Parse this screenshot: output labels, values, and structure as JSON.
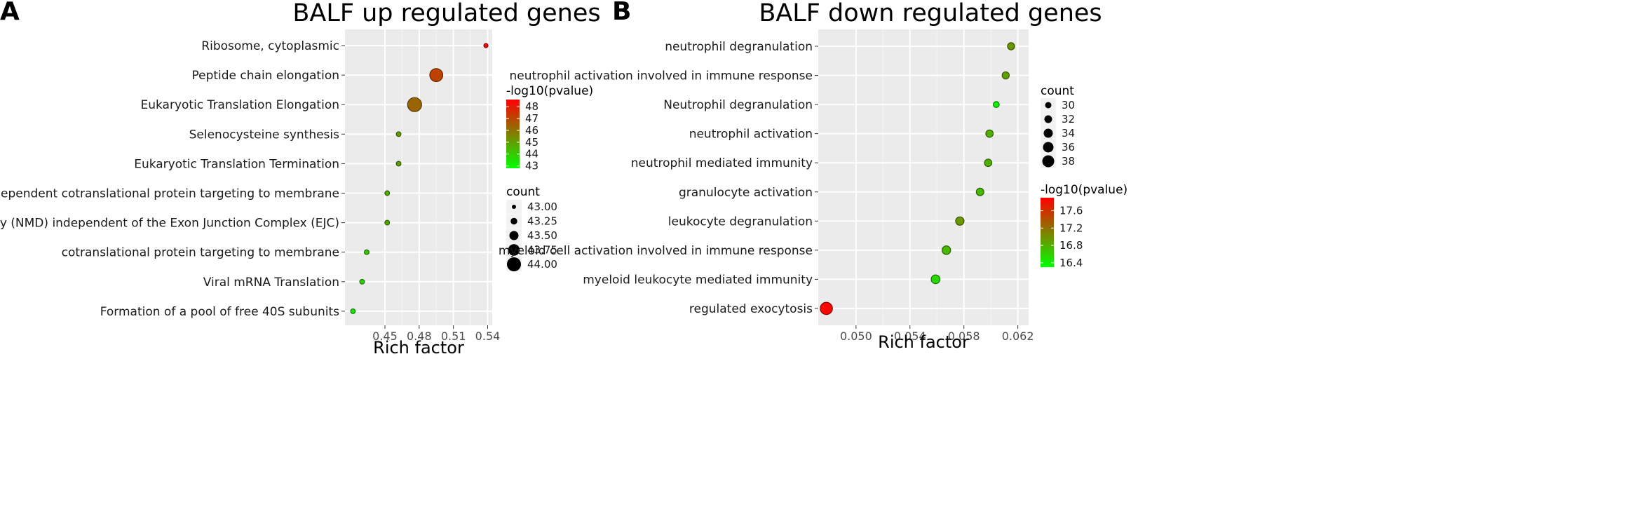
{
  "chart_data": [
    {
      "panel": "A",
      "type": "scatter",
      "title": "BALF up regulated genes",
      "xlabel": "Rich factor",
      "ylabel": "",
      "xlim": [
        0.415,
        0.544
      ],
      "xticks": [
        0.45,
        0.48,
        0.51,
        0.54
      ],
      "xtick_labels": [
        "0.45",
        "0.48",
        "0.51",
        "0.54"
      ],
      "categories": [
        "Ribosome, cytoplasmic",
        "Peptide chain elongation",
        "Eukaryotic Translation Elongation",
        "Selenocysteine synthesis",
        "Eukaryotic Translation Termination",
        "SRP-dependent cotranslational protein targeting to membrane",
        "Nonsense Mediated Decay (NMD) independent of the Exon Junction Complex (EJC)",
        "cotranslational protein targeting to membrane",
        "Viral mRNA Translation",
        "Formation of a pool of free 40S subunits"
      ],
      "points": [
        {
          "term": "Ribosome, cytoplasmic",
          "rich_factor": 0.5385,
          "neglog10p": 48.4,
          "count": 43.0
        },
        {
          "term": "Peptide chain elongation",
          "rich_factor": 0.495,
          "neglog10p": 47.1,
          "count": 43.9
        },
        {
          "term": "Eukaryotic Translation Elongation",
          "rich_factor": 0.476,
          "neglog10p": 46.3,
          "count": 44.0
        },
        {
          "term": "Selenocysteine synthesis",
          "rich_factor": 0.462,
          "neglog10p": 45.0,
          "count": 43.05
        },
        {
          "term": "Eukaryotic Translation Termination",
          "rich_factor": 0.462,
          "neglog10p": 45.0,
          "count": 43.05
        },
        {
          "term": "SRP-dependent cotranslational protein targeting to membrane",
          "rich_factor": 0.452,
          "neglog10p": 44.7,
          "count": 43.05
        },
        {
          "term": "Nonsense Mediated Decay (NMD) independent of the Exon Junction Complex (EJC)",
          "rich_factor": 0.452,
          "neglog10p": 44.7,
          "count": 43.05
        },
        {
          "term": "cotranslational protein targeting to membrane",
          "rich_factor": 0.434,
          "neglog10p": 44.0,
          "count": 43.05
        },
        {
          "term": "Viral mRNA Translation",
          "rich_factor": 0.43,
          "neglog10p": 43.8,
          "count": 43.05
        },
        {
          "term": "Formation of a pool of free 40S subunits",
          "rich_factor": 0.422,
          "neglog10p": 43.4,
          "count": 43.05
        }
      ],
      "color_legend": {
        "title": "-log10(pvalue)",
        "min": 42.8,
        "max": 48.6,
        "ticks": [
          43,
          44,
          45,
          46,
          47,
          48
        ]
      },
      "size_legend": {
        "title": "count",
        "min": 43.0,
        "max": 44.0,
        "values": [
          43.0,
          43.25,
          43.5,
          43.75,
          44.0
        ],
        "labels": [
          "43.00",
          "43.25",
          "43.50",
          "43.75",
          "44.00"
        ]
      },
      "legend_order": [
        "color",
        "size"
      ]
    },
    {
      "panel": "B",
      "type": "scatter",
      "title": "BALF down regulated genes",
      "xlabel": "Rich factor",
      "ylabel": "",
      "xlim": [
        0.0472,
        0.0628
      ],
      "xticks": [
        0.05,
        0.054,
        0.058,
        0.062
      ],
      "xtick_labels": [
        "0.050",
        "0.054",
        "0.058",
        "0.062"
      ],
      "categories": [
        "neutrophil degranulation",
        "neutrophil activation involved in immune response",
        "Neutrophil degranulation",
        "neutrophil activation",
        "neutrophil mediated immunity",
        "granulocyte activation",
        "leukocyte degranulation",
        "myeloid cell activation involved in immune response",
        "myeloid leukocyte mediated immunity",
        "regulated exocytosis"
      ],
      "points": [
        {
          "term": "neutrophil degranulation",
          "rich_factor": 0.0615,
          "neglog10p": 16.95,
          "count": 31.2
        },
        {
          "term": "neutrophil activation involved in immune response",
          "rich_factor": 0.0611,
          "neglog10p": 16.9,
          "count": 31.2
        },
        {
          "term": "Neutrophil degranulation",
          "rich_factor": 0.0604,
          "neglog10p": 16.4,
          "count": 29.5
        },
        {
          "term": "neutrophil activation",
          "rich_factor": 0.0599,
          "neglog10p": 16.8,
          "count": 31.5
        },
        {
          "term": "neutrophil mediated immunity",
          "rich_factor": 0.0598,
          "neglog10p": 16.8,
          "count": 31.5
        },
        {
          "term": "granulocyte activation",
          "rich_factor": 0.0592,
          "neglog10p": 16.75,
          "count": 31.8
        },
        {
          "term": "leukocyte degranulation",
          "rich_factor": 0.0577,
          "neglog10p": 16.95,
          "count": 33.0
        },
        {
          "term": "myeloid cell activation involved in immune response",
          "rich_factor": 0.0567,
          "neglog10p": 16.75,
          "count": 33.2
        },
        {
          "term": "myeloid leukocyte mediated immunity",
          "rich_factor": 0.0559,
          "neglog10p": 16.55,
          "count": 33.5
        },
        {
          "term": "regulated exocytosis",
          "rich_factor": 0.0478,
          "neglog10p": 17.85,
          "count": 38.4
        }
      ],
      "color_legend": {
        "title": "-log10(pvalue)",
        "min": 16.3,
        "max": 17.9,
        "ticks": [
          16.4,
          16.8,
          17.2,
          17.6
        ]
      },
      "size_legend": {
        "title": "count",
        "min": 29.0,
        "max": 39.0,
        "values": [
          30,
          32,
          34,
          36,
          38
        ],
        "labels": [
          "30",
          "32",
          "34",
          "36",
          "38"
        ]
      },
      "legend_order": [
        "size",
        "color"
      ]
    }
  ]
}
